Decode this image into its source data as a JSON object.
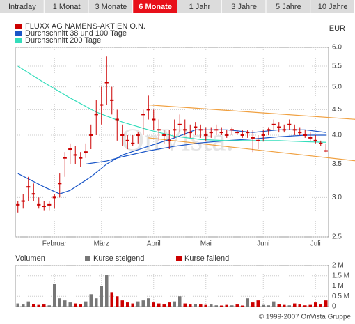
{
  "tabs": [
    "Intraday",
    "1 Monat",
    "3 Monate",
    "6 Monate",
    "1 Jahr",
    "3 Jahre",
    "5 Jahre",
    "10 Jahre"
  ],
  "active_tab": 3,
  "footer": "© 1999-2007 OnVista Gruppe",
  "chart_data": [
    {
      "type": "ohlc",
      "log_scale": true,
      "grid": true,
      "currency": "EUR",
      "watermark": "OnVista.",
      "categories": [
        null,
        null,
        null,
        null,
        null,
        null,
        null,
        null,
        null,
        null,
        null,
        null,
        null,
        null,
        null,
        null,
        null,
        null,
        null,
        null,
        null,
        null,
        null,
        null,
        null,
        null,
        null,
        null,
        null,
        null,
        null,
        null,
        null,
        null,
        null,
        null,
        null,
        null,
        null,
        null,
        null,
        null,
        null,
        null,
        null,
        null,
        null,
        null,
        null,
        null,
        null,
        null,
        null,
        null,
        null,
        null,
        null,
        null,
        null,
        null
      ],
      "xticks": [
        {
          "value": 7,
          "label": "Februar"
        },
        {
          "value": 16,
          "label": "März"
        },
        {
          "value": 26,
          "label": "April"
        },
        {
          "value": 36,
          "label": "Mai"
        },
        {
          "value": 47,
          "label": "Juni"
        },
        {
          "value": 57,
          "label": "Juli"
        }
      ],
      "ylim": [
        2.5,
        6
      ],
      "yticks": [
        2.5,
        {
          "value": 3,
          "label": "3.0"
        },
        3.5,
        {
          "value": 4,
          "label": "4.0"
        },
        4.5,
        {
          "value": 5,
          "label": "5.0"
        },
        5.5,
        {
          "value": 6,
          "label": "6.0"
        }
      ],
      "series": [
        {
          "name": "FLUXX AG NAMENS-AKTIEN O.N.",
          "color": "#cc0000",
          "high": [
            2.95,
            3.05,
            3.3,
            3.2,
            3.0,
            2.95,
            2.95,
            3.05,
            3.35,
            3.7,
            3.85,
            3.8,
            3.7,
            3.85,
            4.2,
            4.7,
            5.0,
            5.75,
            5.0,
            4.5,
            4.2,
            4.0,
            4.0,
            4.05,
            4.5,
            4.8,
            4.5,
            4.3,
            4.1,
            4.1,
            4.3,
            4.4,
            4.3,
            4.2,
            4.25,
            4.2,
            4.15,
            4.15,
            4.2,
            4.15,
            4.1,
            4.15,
            4.1,
            4.1,
            4.1,
            4.1,
            4.0,
            4.1,
            4.15,
            4.3,
            4.25,
            4.2,
            4.3,
            4.2,
            4.15,
            4.1,
            4.05,
            4.0,
            3.9,
            3.85
          ],
          "low": [
            2.8,
            2.85,
            2.95,
            2.95,
            2.85,
            2.82,
            2.82,
            2.85,
            3.0,
            3.3,
            3.5,
            3.5,
            3.45,
            3.6,
            3.75,
            4.0,
            4.2,
            4.6,
            4.4,
            3.9,
            3.8,
            3.75,
            3.8,
            3.85,
            4.0,
            4.3,
            4.1,
            3.9,
            3.85,
            3.75,
            3.95,
            4.05,
            4.0,
            3.95,
            4.0,
            3.95,
            3.9,
            3.95,
            4.0,
            4.0,
            3.95,
            4.0,
            4.0,
            3.95,
            3.95,
            3.7,
            3.75,
            3.9,
            4.0,
            4.1,
            4.05,
            4.05,
            4.1,
            4.0,
            4.0,
            3.95,
            3.9,
            3.85,
            3.8,
            3.7
          ],
          "close": [
            2.9,
            2.95,
            3.15,
            3.05,
            2.9,
            2.88,
            2.9,
            3.0,
            3.2,
            3.6,
            3.75,
            3.65,
            3.6,
            3.7,
            4.0,
            4.4,
            4.6,
            5.1,
            4.7,
            4.3,
            4.0,
            3.9,
            3.85,
            4.0,
            4.4,
            4.5,
            4.3,
            4.1,
            4.0,
            3.9,
            4.1,
            4.2,
            4.1,
            4.05,
            4.15,
            4.1,
            4.0,
            4.05,
            4.1,
            4.05,
            4.0,
            4.1,
            4.05,
            4.0,
            4.05,
            3.95,
            3.9,
            4.0,
            4.1,
            4.2,
            4.15,
            4.1,
            4.2,
            4.1,
            4.05,
            4.0,
            3.95,
            3.9,
            3.85,
            3.72
          ]
        },
        {
          "name": "Durchschnitt 38 und 100 Tage",
          "color": "#1a56c8",
          "lines": [
            {
              "x": [
                0,
                5,
                8,
                10,
                14,
                17,
                20,
                25,
                30,
                34,
                40,
                45,
                50,
                55,
                59
              ],
              "values": [
                3.35,
                3.15,
                3.05,
                3.1,
                3.3,
                3.5,
                3.65,
                3.8,
                3.95,
                4.1,
                4.1,
                4.05,
                4.1,
                4.1,
                4.05
              ]
            },
            {
              "x": [
                13,
                17,
                20,
                25,
                30,
                35,
                40,
                45,
                50,
                55,
                59
              ],
              "values": [
                3.5,
                3.55,
                3.62,
                3.72,
                3.8,
                3.86,
                3.9,
                3.93,
                3.97,
                4.0,
                4.0
              ]
            }
          ]
        },
        {
          "name": "Durchschnitt 200 Tage",
          "color": "#33ddbb",
          "x": [
            0,
            5,
            10,
            15,
            20,
            25,
            30,
            35,
            40,
            45,
            50,
            55,
            59
          ],
          "values": [
            5.5,
            5.1,
            4.75,
            4.45,
            4.25,
            4.1,
            3.98,
            3.92,
            3.9,
            3.9,
            3.9,
            3.88,
            3.87
          ]
        }
      ],
      "trendlines": {
        "color": "#f0a040",
        "lines": [
          {
            "x": [
              25,
              65
            ],
            "values": [
              4.6,
              4.3
            ]
          },
          {
            "x": [
              25,
              65
            ],
            "values": [
              3.95,
              3.55
            ]
          }
        ]
      }
    },
    {
      "type": "bar",
      "title": "Volumen",
      "values": [
        150000,
        100000,
        250000,
        120000,
        80000,
        100000,
        60000,
        1100000,
        400000,
        300000,
        200000,
        150000,
        100000,
        250000,
        600000,
        400000,
        1000000,
        1550000,
        700000,
        500000,
        300000,
        200000,
        150000,
        250000,
        300000,
        400000,
        200000,
        150000,
        100000,
        200000,
        250000,
        500000,
        150000,
        100000,
        120000,
        100000,
        80000,
        100000,
        60000,
        50000,
        80000,
        60000,
        100000,
        50000,
        400000,
        200000,
        300000,
        80000,
        60000,
        250000,
        100000,
        80000,
        60000,
        150000,
        100000,
        60000,
        80000,
        200000,
        100000,
        300000
      ],
      "ylim": [
        0,
        2000000
      ],
      "yticks": [
        0,
        {
          "value": 500000,
          "label": "0.5 M"
        },
        {
          "value": 1000000,
          "label": "1 M"
        },
        {
          "value": 1500000,
          "label": "1.5 M"
        },
        {
          "value": 2000000,
          "label": "2 M"
        }
      ],
      "legend": [
        {
          "name": "Kurse steigend",
          "color": "#777777"
        },
        {
          "name": "Kurse fallend",
          "color": "#cc0000"
        }
      ]
    }
  ]
}
